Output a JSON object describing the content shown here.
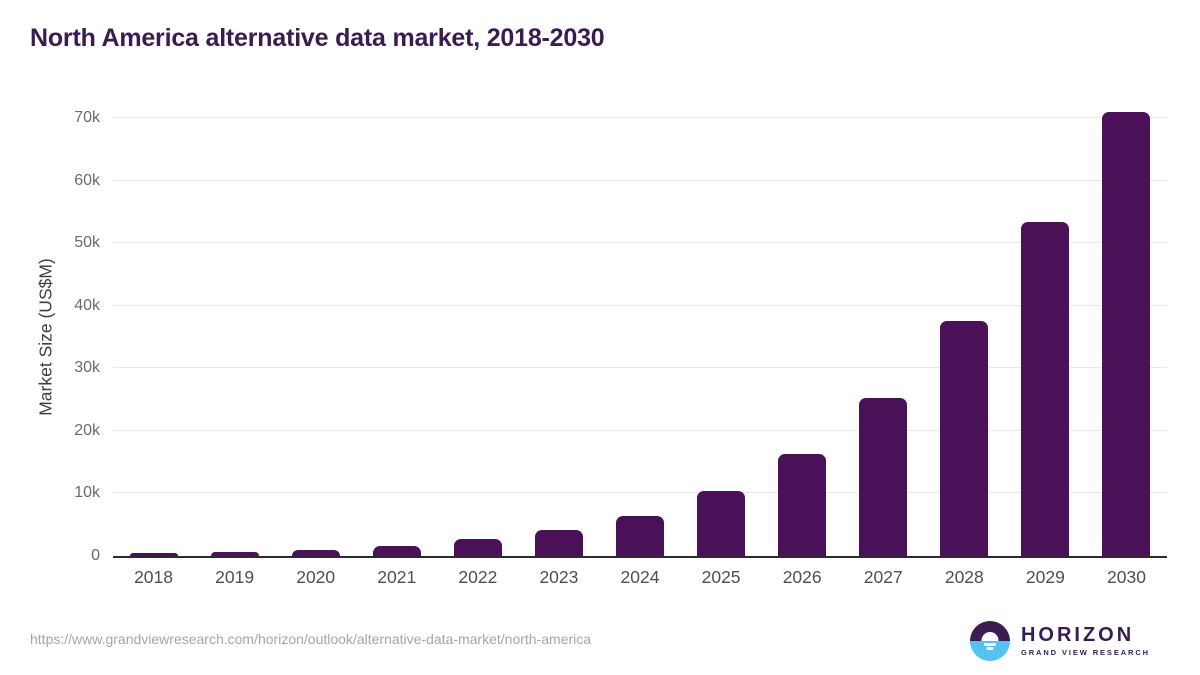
{
  "page": {
    "title": "North America alternative data market, 2018-2030"
  },
  "chart_data": {
    "type": "bar",
    "title": "North America alternative data market, 2018-2030",
    "categories": [
      "2018",
      "2019",
      "2020",
      "2021",
      "2022",
      "2023",
      "2024",
      "2025",
      "2026",
      "2027",
      "2028",
      "2029",
      "2030"
    ],
    "values": [
      420,
      640,
      1020,
      1600,
      2650,
      4200,
      6400,
      10450,
      16350,
      25200,
      37500,
      53450,
      71000
    ],
    "xlabel": "",
    "ylabel": "Market Size (US$M)",
    "ylim": [
      0,
      70000
    ],
    "yticks": [
      {
        "value": 0,
        "label": "0"
      },
      {
        "value": 10000,
        "label": "10k"
      },
      {
        "value": 20000,
        "label": "20k"
      },
      {
        "value": 30000,
        "label": "30k"
      },
      {
        "value": 40000,
        "label": "40k"
      },
      {
        "value": 50000,
        "label": "50k"
      },
      {
        "value": 60000,
        "label": "60k"
      },
      {
        "value": 70000,
        "label": "70k"
      }
    ],
    "grid": "horizontal",
    "legend": false,
    "bar_style": "rounded-top"
  },
  "colors": {
    "bar": "#4a1158",
    "title_text": "#3a1b52",
    "gridline": "#e9e9ec",
    "axis_line": "#2b2b2b",
    "tick_label": "#6b6b6b",
    "category_label": "#4f4f4f",
    "url_text": "#a6a6aa",
    "logo_purple": "#3b1d52",
    "logo_blue": "#55c3f0"
  },
  "footer": {
    "source_url": "https://www.grandviewresearch.com/horizon/outlook/alternative-data-market/north-america",
    "logo": {
      "wordmark": "HORIZON",
      "subtitle": "GRAND VIEW RESEARCH"
    }
  }
}
